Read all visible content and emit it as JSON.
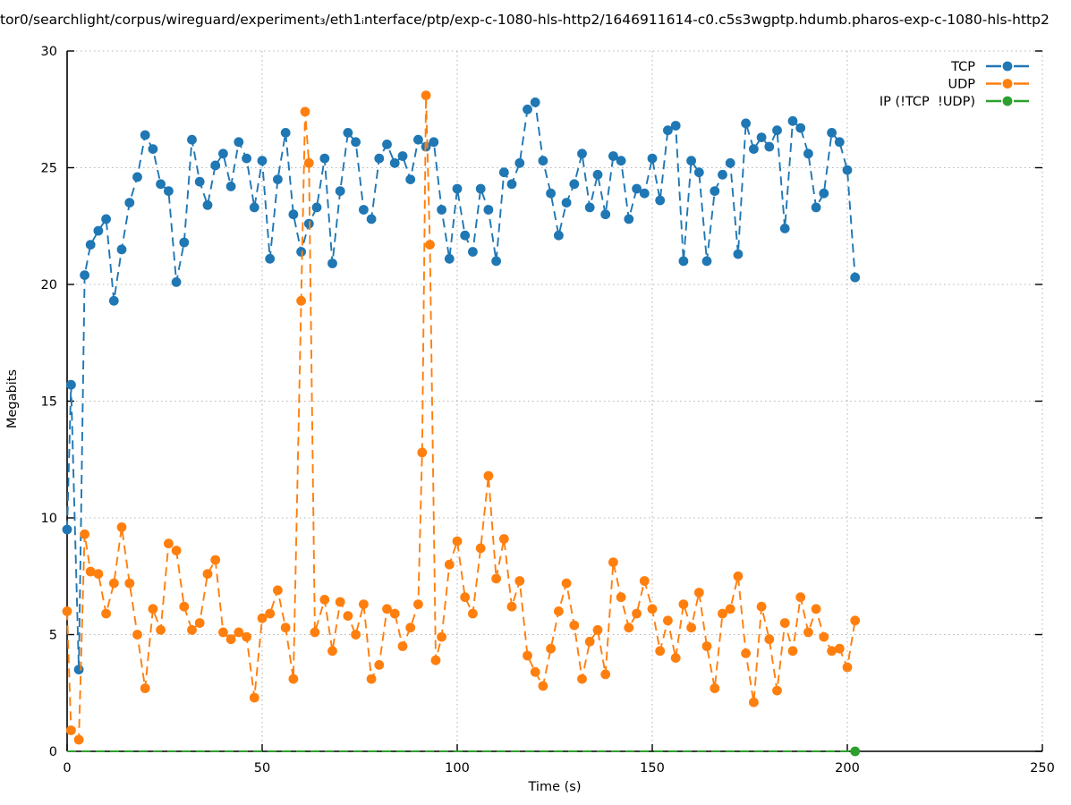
{
  "title": "tor0/searchlight/corpus/wireguard/experiment₃/eth1ᵢnterface/ptp/exp-c-1080-hls-http2/1646911614-c0.c5s3wgptp.hdumb.pharos-exp-c-1080-hls-http2",
  "axes": {
    "x_label": "Time (s)",
    "y_label": "Megabits",
    "x_range": [
      0,
      250
    ],
    "y_range": [
      0,
      30
    ],
    "x_ticks": [
      0,
      50,
      100,
      150,
      200,
      250
    ],
    "y_ticks": [
      0,
      5,
      10,
      15,
      20,
      25,
      30
    ]
  },
  "colors": {
    "tcp": "#1f77b4",
    "udp": "#ff7f0e",
    "ip": "#2ca02c",
    "grid": "#b5b5b5",
    "axis": "#000000",
    "background": "#ffffff"
  },
  "legend": {
    "position": "top-right",
    "entries": [
      "TCP",
      "UDP",
      "IP (!TCP  !UDP)"
    ]
  },
  "chart_data": {
    "type": "line",
    "title": "tor0/searchlight/corpus/wireguard/experiment₃/eth1ᵢnterface/ptp/exp-c-1080-hls-http2/1646911614-c0.c5s3wgptp.hdumb.pharos-exp-c-1080-hls-http2",
    "xlabel": "Time (s)",
    "ylabel": "Megabits",
    "xlim": [
      0,
      250
    ],
    "ylim": [
      0,
      30
    ],
    "grid": true,
    "legend_position": "top-right",
    "line_style": "dashed",
    "marker": "circle",
    "series": [
      {
        "name": "TCP",
        "color": "#1f77b4",
        "markers": "all",
        "x": [
          0,
          1,
          3,
          4.5,
          6,
          8,
          10,
          12,
          14,
          16,
          18,
          20,
          22,
          24,
          26,
          28,
          30,
          32,
          34,
          36,
          38,
          40,
          42,
          44,
          46,
          48,
          50,
          52,
          54,
          56,
          58,
          60,
          62,
          64,
          66,
          68,
          70,
          72,
          74,
          76,
          78,
          80,
          82,
          84,
          86,
          88,
          90,
          92,
          94,
          96,
          98,
          100,
          102,
          104,
          106,
          108,
          110,
          112,
          114,
          116,
          118,
          120,
          122,
          124,
          126,
          128,
          130,
          132,
          134,
          136,
          138,
          140,
          142,
          144,
          146,
          148,
          150,
          152,
          154,
          156,
          158,
          160,
          162,
          164,
          166,
          168,
          170,
          172,
          174,
          176,
          178,
          180,
          182,
          184,
          186,
          188,
          190,
          192,
          194,
          196,
          198,
          200,
          202
        ],
        "values": [
          9.5,
          15.7,
          3.5,
          20.4,
          21.7,
          22.3,
          22.8,
          19.3,
          21.5,
          23.5,
          24.6,
          26.4,
          25.8,
          24.3,
          24.0,
          20.1,
          21.8,
          26.2,
          24.4,
          23.4,
          25.1,
          25.6,
          24.2,
          26.1,
          25.4,
          23.3,
          25.3,
          21.1,
          24.5,
          26.5,
          23.0,
          21.4,
          22.6,
          23.3,
          25.4,
          20.9,
          24.0,
          26.5,
          26.1,
          23.2,
          22.8,
          25.4,
          26.0,
          25.2,
          25.5,
          24.5,
          26.2,
          25.9,
          26.1,
          23.2,
          21.1,
          24.1,
          22.1,
          21.4,
          24.1,
          23.2,
          21.0,
          24.8,
          24.3,
          25.2,
          27.5,
          27.8,
          25.3,
          23.9,
          22.1,
          23.5,
          24.3,
          25.6,
          23.3,
          24.7,
          23.0,
          25.5,
          25.3,
          22.8,
          24.1,
          23.9,
          25.4,
          23.6,
          26.6,
          26.8,
          21.0,
          25.3,
          24.8,
          21.0,
          24.0,
          24.7,
          25.2,
          21.3,
          26.9,
          25.8,
          26.3,
          25.9,
          26.6,
          22.4,
          27.0,
          26.7,
          25.6,
          23.3,
          23.9,
          26.5,
          26.1,
          24.9,
          20.3
        ]
      },
      {
        "name": "UDP",
        "color": "#ff7f0e",
        "markers": "all",
        "x": [
          0,
          1,
          3,
          4.5,
          6,
          8,
          10,
          12,
          14,
          16,
          18,
          20,
          22,
          24,
          26,
          28,
          30,
          32,
          34,
          36,
          38,
          40,
          42,
          44,
          46,
          48,
          50,
          52,
          54,
          56,
          58,
          60,
          61,
          62,
          63.5,
          66,
          68,
          70,
          72,
          74,
          76,
          78,
          80,
          82,
          84,
          86,
          88,
          90,
          91,
          92,
          93,
          94.5,
          96,
          98,
          100,
          102,
          104,
          106,
          108,
          110,
          112,
          114,
          116,
          118,
          120,
          122,
          124,
          126,
          128,
          130,
          132,
          134,
          136,
          138,
          140,
          142,
          144,
          146,
          148,
          150,
          152,
          154,
          156,
          158,
          160,
          162,
          164,
          166,
          168,
          170,
          172,
          174,
          176,
          178,
          180,
          182,
          184,
          186,
          188,
          190,
          192,
          194,
          196,
          198,
          200,
          202
        ],
        "values": [
          6.0,
          0.9,
          0.5,
          9.3,
          7.7,
          7.6,
          5.9,
          7.2,
          9.6,
          7.2,
          5.0,
          2.7,
          6.1,
          5.2,
          8.9,
          8.6,
          6.2,
          5.2,
          5.5,
          7.6,
          8.2,
          5.1,
          4.8,
          5.1,
          4.9,
          2.3,
          5.7,
          5.9,
          6.9,
          5.3,
          3.1,
          19.3,
          27.4,
          25.2,
          5.1,
          6.5,
          4.3,
          6.4,
          5.8,
          5.0,
          6.3,
          3.1,
          3.7,
          6.1,
          5.9,
          4.5,
          5.3,
          6.3,
          12.8,
          28.1,
          21.7,
          3.9,
          4.9,
          8.0,
          9.0,
          6.6,
          5.9,
          8.7,
          11.8,
          7.4,
          9.1,
          6.2,
          7.3,
          4.1,
          3.4,
          2.8,
          4.4,
          6.0,
          7.2,
          5.4,
          3.1,
          4.7,
          5.2,
          3.3,
          8.1,
          6.6,
          5.3,
          5.9,
          7.3,
          6.1,
          4.3,
          5.6,
          4.0,
          6.3,
          5.3,
          6.8,
          4.5,
          2.7,
          5.9,
          6.1,
          7.5,
          4.2,
          2.1,
          6.2,
          4.8,
          2.6,
          5.5,
          4.3,
          6.6,
          5.1,
          6.1,
          4.9,
          4.3,
          4.4,
          3.6,
          5.6
        ]
      },
      {
        "name": "IP (!TCP  !UDP)",
        "color": "#2ca02c",
        "markers": "last",
        "x": [
          0,
          202
        ],
        "values": [
          0,
          0
        ]
      }
    ]
  }
}
